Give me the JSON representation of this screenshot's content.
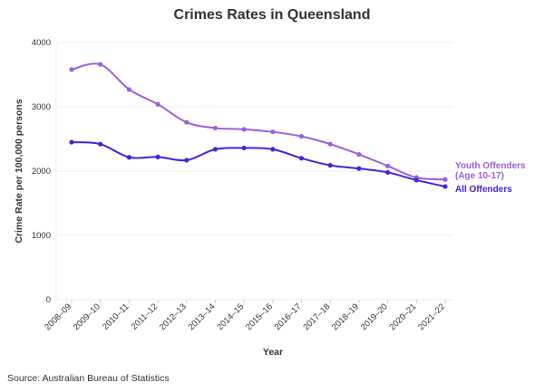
{
  "chart_data": {
    "type": "line",
    "title": "Crimes Rates in Queensland",
    "xlabel": "Year",
    "ylabel": "Crime Rate per 100,000 persons",
    "ylim": [
      0,
      4000
    ],
    "yticks": [
      "0",
      "1000",
      "2000",
      "3000",
      "4000"
    ],
    "grid": true,
    "legend": "direct labels at line ends (right)",
    "categories": [
      "2008–09",
      "2009–10",
      "2010–11",
      "2011–12",
      "2012–13",
      "2013–14",
      "2014–15",
      "2015–16",
      "2016–17",
      "2017–18",
      "2018–19",
      "2019–20",
      "2020–21",
      "2021–22"
    ],
    "series": [
      {
        "name": "Youth Offenders (Age 10-17)",
        "name_lines": [
          "Youth Offenders",
          "(Age 10-17)"
        ],
        "color": "#9d5ee0",
        "values": [
          3580,
          3660,
          3270,
          3040,
          2760,
          2670,
          2650,
          2610,
          2540,
          2420,
          2260,
          2080,
          1900,
          1870
        ]
      },
      {
        "name": "All Offenders",
        "name_lines": [
          "All Offenders"
        ],
        "color": "#4422e0",
        "values": [
          2450,
          2420,
          2215,
          2220,
          2170,
          2340,
          2360,
          2340,
          2200,
          2090,
          2040,
          1980,
          1860,
          1760
        ]
      }
    ]
  },
  "source": "Source: Australian Bureau of Statistics"
}
